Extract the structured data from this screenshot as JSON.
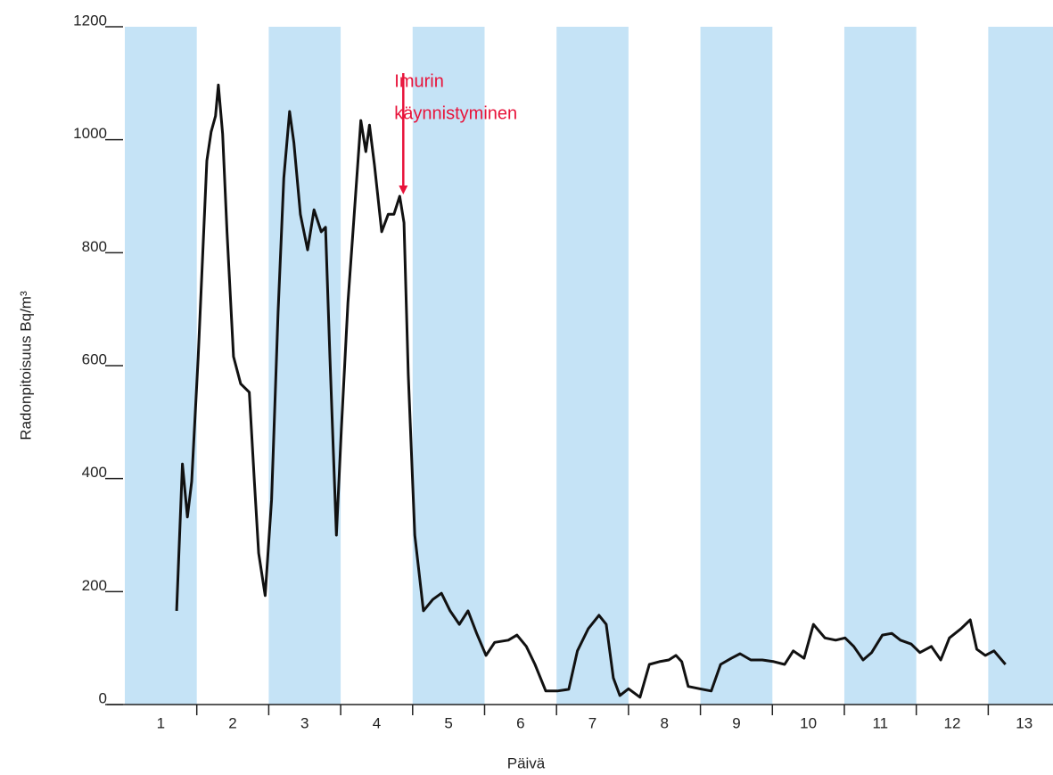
{
  "chart_data": {
    "type": "line",
    "x_label": "Päivä",
    "y_label": "Radonpitoisuus Bq/m³",
    "annotation": {
      "lines": [
        "Imurin",
        "käynnistyminen"
      ],
      "x": 3.87,
      "y": 900,
      "color": "#e8133a"
    },
    "xlim": [
      0,
      12.9
    ],
    "ylim": [
      0,
      1200
    ],
    "yticks": [
      0,
      200,
      400,
      600,
      800,
      1000,
      1200
    ],
    "xticks": [
      {
        "value": 0.5,
        "label": "1"
      },
      {
        "value": 1.5,
        "label": "2"
      },
      {
        "value": 2.5,
        "label": "3"
      },
      {
        "value": 3.5,
        "label": "4"
      },
      {
        "value": 4.5,
        "label": "5"
      },
      {
        "value": 5.5,
        "label": "6"
      },
      {
        "value": 6.5,
        "label": "7"
      },
      {
        "value": 7.5,
        "label": "8"
      },
      {
        "value": 8.5,
        "label": "9"
      },
      {
        "value": 9.5,
        "label": "10"
      },
      {
        "value": 10.5,
        "label": "11"
      },
      {
        "value": 11.5,
        "label": "12"
      },
      {
        "value": 12.5,
        "label": "13"
      }
    ],
    "band_color": "#c5e3f6",
    "color": "#111111",
    "x": [
      0.72,
      0.8,
      0.87,
      0.93,
      1.02,
      1.14,
      1.2,
      1.26,
      1.3,
      1.36,
      1.42,
      1.51,
      1.61,
      1.73,
      1.8,
      1.86,
      1.95,
      2.04,
      2.13,
      2.21,
      2.29,
      2.35,
      2.44,
      2.54,
      2.63,
      2.73,
      2.79,
      2.85,
      2.94,
      3.01,
      3.1,
      3.18,
      3.28,
      3.35,
      3.4,
      3.47,
      3.57,
      3.66,
      3.74,
      3.82,
      3.88,
      3.94,
      4.03,
      4.15,
      4.28,
      4.4,
      4.52,
      4.65,
      4.77,
      4.89,
      5.02,
      5.14,
      5.33,
      5.45,
      5.58,
      5.7,
      5.85,
      6.01,
      6.17,
      6.29,
      6.44,
      6.59,
      6.69,
      6.79,
      6.88,
      7.0,
      7.16,
      7.29,
      7.43,
      7.56,
      7.66,
      7.74,
      7.83,
      7.99,
      8.15,
      8.28,
      8.43,
      8.55,
      8.7,
      8.86,
      9.02,
      9.17,
      9.29,
      9.44,
      9.57,
      9.73,
      9.88,
      10.01,
      10.13,
      10.26,
      10.38,
      10.53,
      10.66,
      10.78,
      10.93,
      11.05,
      11.21,
      11.34,
      11.46,
      11.62,
      11.75,
      11.84,
      11.96,
      12.08,
      12.24
    ],
    "values": [
      166,
      426,
      332,
      395,
      616,
      963,
      1014,
      1042,
      1097,
      1010,
      837,
      616,
      568,
      553,
      395,
      268,
      193,
      363,
      695,
      932,
      1050,
      995,
      868,
      805,
      876,
      837,
      845,
      616,
      300,
      489,
      711,
      853,
      1034,
      979,
      1026,
      955,
      837,
      868,
      868,
      900,
      853,
      584,
      300,
      166,
      186,
      197,
      166,
      142,
      166,
      126,
      87,
      110,
      114,
      123,
      103,
      71,
      24,
      24,
      27,
      95,
      134,
      158,
      142,
      47,
      16,
      28,
      13,
      71,
      76,
      79,
      87,
      76,
      32,
      28,
      24,
      71,
      82,
      90,
      79,
      79,
      76,
      71,
      95,
      82,
      142,
      118,
      114,
      118,
      103,
      79,
      92,
      123,
      126,
      114,
      107,
      92,
      103,
      79,
      118,
      134,
      150,
      98,
      87,
      95,
      71
    ]
  }
}
